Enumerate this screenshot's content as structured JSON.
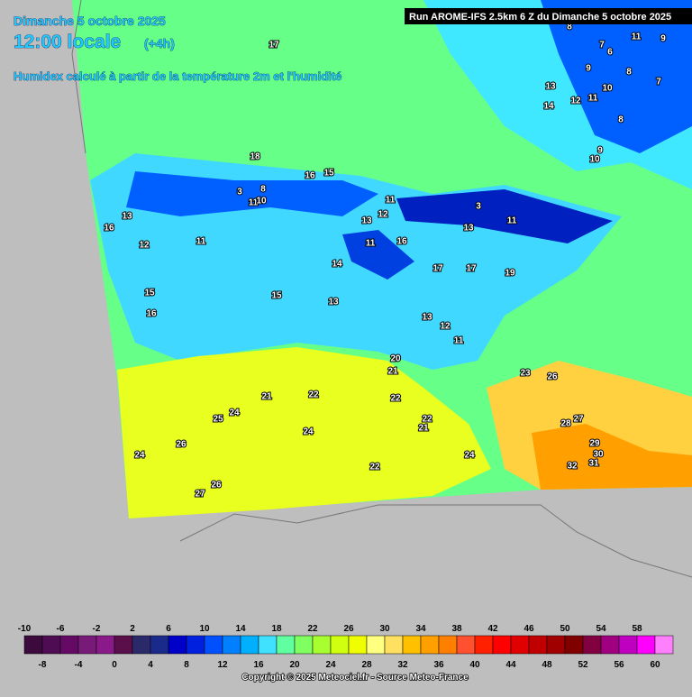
{
  "header": {
    "date": "Dimanche 5 octobre 2025",
    "time": "12:00 locale",
    "offset": "(+4h)",
    "subtitle": "Humidex calculé à partir de la température 2m et l'humidité",
    "run": "Run AROME-IFS 2.5km 6 Z du Dimanche 5 octobre 2025"
  },
  "map_labels": [
    17,
    18,
    16,
    15,
    8,
    11,
    9,
    7,
    6,
    9,
    8,
    7,
    13,
    10,
    12,
    11,
    14,
    8,
    9,
    10,
    8,
    3,
    11,
    10,
    11,
    13,
    12,
    13,
    16,
    12,
    11,
    13,
    3,
    11,
    16,
    11,
    17,
    17,
    19,
    14,
    15,
    15,
    13,
    16,
    13,
    12,
    11,
    20,
    21,
    23,
    26,
    21,
    22,
    22,
    25,
    24,
    27,
    28,
    22,
    21,
    24,
    26,
    29,
    24,
    30,
    31,
    24,
    32,
    22,
    26,
    27
  ],
  "colorbar": {
    "upper_labels": [
      -10,
      -6,
      -2,
      2,
      6,
      10,
      14,
      18,
      22,
      26,
      30,
      34,
      38,
      42,
      46,
      50,
      54,
      58
    ],
    "lower_labels": [
      -8,
      -4,
      0,
      4,
      8,
      12,
      16,
      20,
      24,
      28,
      32,
      36,
      40,
      44,
      48,
      52,
      56,
      60
    ],
    "colors": [
      "#3c0a3c",
      "#4e0c52",
      "#640a64",
      "#781a78",
      "#8a1a8a",
      "#5a0f4a",
      "#2a2a6a",
      "#1a2a8a",
      "#0000c8",
      "#0020e0",
      "#0050ff",
      "#0080ff",
      "#00b0ff",
      "#40e0ff",
      "#60ffa0",
      "#80ff60",
      "#a8ff30",
      "#d0ff10",
      "#f0ff00",
      "#ffff80",
      "#ffe060",
      "#ffc000",
      "#ffa000",
      "#ff8000",
      "#ff5030",
      "#ff2000",
      "#ff0000",
      "#e00000",
      "#c00000",
      "#a00000",
      "#800000",
      "#800040",
      "#a00080",
      "#c000c0",
      "#ff00ff",
      "#ff80ff"
    ]
  },
  "footer": "Copyright © 2025 Meteociel.fr - Source Meteo-France"
}
